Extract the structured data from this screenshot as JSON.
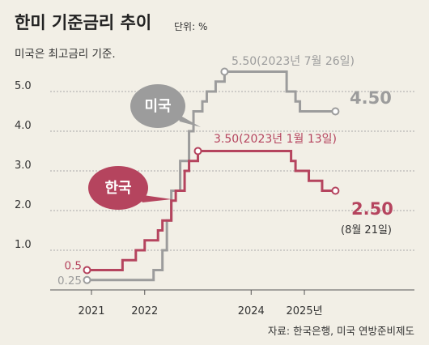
{
  "title": "한미 기준금리 추이",
  "unit": "단위: %",
  "subtitle": "미국은 최고금리 기준.",
  "source": "자료: 한국은행, 미국 연방준비제도",
  "colors": {
    "us": "#9c9c9c",
    "korea": "#b5445e",
    "grid": "#aaaaaa",
    "axis": "#555555",
    "background": "#f2efe6"
  },
  "chart_data": {
    "type": "line",
    "step": true,
    "x_ticks": [
      "2021",
      "2022",
      "2024",
      "2025년"
    ],
    "y_ticks": [
      "1.0",
      "2.0",
      "3.0",
      "4.0",
      "5.0"
    ],
    "ylim": [
      0,
      5.5
    ],
    "grid": true,
    "series": [
      {
        "name": "미국",
        "values": [
          [
            "2020-12",
            0.25
          ],
          [
            "2022-03",
            0.5
          ],
          [
            "2022-05",
            1.0
          ],
          [
            "2022-06",
            1.75
          ],
          [
            "2022-07",
            2.5
          ],
          [
            "2022-09",
            3.25
          ],
          [
            "2022-11",
            4.0
          ],
          [
            "2022-12",
            4.5
          ],
          [
            "2023-02",
            4.75
          ],
          [
            "2023-03",
            5.0
          ],
          [
            "2023-05",
            5.25
          ],
          [
            "2023-07",
            5.5
          ],
          [
            "2024-09",
            5.0
          ],
          [
            "2024-11",
            4.75
          ],
          [
            "2024-12",
            4.5
          ],
          [
            "2025-08",
            4.5
          ]
        ],
        "start_label": "0.25",
        "peak_label": "5.50(2023년 7월 26일)",
        "end_label": "4.50"
      },
      {
        "name": "한국",
        "values": [
          [
            "2020-12",
            0.5
          ],
          [
            "2021-08",
            0.75
          ],
          [
            "2021-11",
            1.0
          ],
          [
            "2022-01",
            1.25
          ],
          [
            "2022-04",
            1.5
          ],
          [
            "2022-05",
            1.75
          ],
          [
            "2022-07",
            2.25
          ],
          [
            "2022-08",
            2.5
          ],
          [
            "2022-10",
            3.0
          ],
          [
            "2022-11",
            3.25
          ],
          [
            "2023-01",
            3.5
          ],
          [
            "2024-10",
            3.25
          ],
          [
            "2024-11",
            3.0
          ],
          [
            "2025-02",
            2.75
          ],
          [
            "2025-05",
            2.5
          ],
          [
            "2025-08",
            2.5
          ]
        ],
        "start_label": "0.5",
        "peak_label": "3.50(2023년 1월 13일)",
        "end_label": "2.50",
        "end_note": "(8월 21일)"
      }
    ]
  }
}
